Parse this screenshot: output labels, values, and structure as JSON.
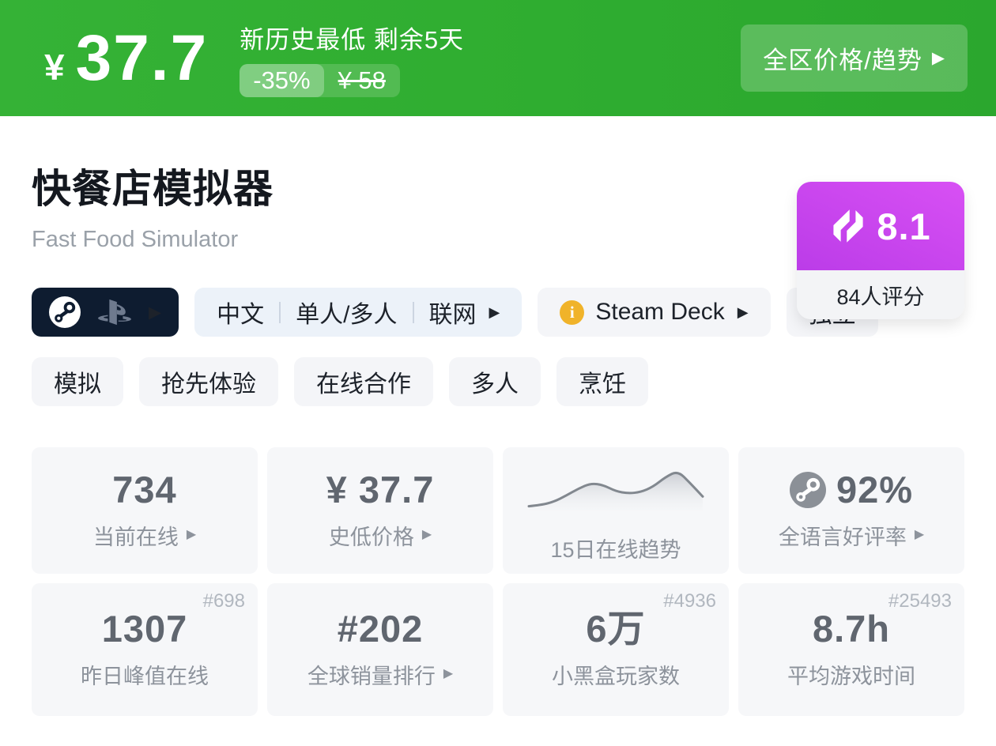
{
  "ui": {
    "arrow": "▶",
    "info_glyph": "i"
  },
  "colors": {
    "banner_green": "#2fad30",
    "rating_purple_top": "#d850f4",
    "rating_purple_bottom": "#bb3ce8",
    "dark_pill_navy": "#0e1c30",
    "info_yellow": "#f0b32a"
  },
  "banner": {
    "currency": "¥",
    "price": "37.7",
    "promo": "新历史最低 剩余5天",
    "discount": "-35%",
    "original_price": "¥ 58",
    "trend_button": "全区价格/趋势"
  },
  "header": {
    "title": "快餐店模拟器",
    "subtitle": "Fast Food Simulator",
    "rating_score": "8.1",
    "rating_count": "84人评分"
  },
  "tags": {
    "multi": [
      "中文",
      "单人/多人",
      "联网"
    ],
    "steam_deck": "Steam Deck",
    "indie": "独立",
    "genres": [
      "模拟",
      "抢先体验",
      "在线合作",
      "多人",
      "烹饪"
    ]
  },
  "stats": {
    "current_online": {
      "value": "734",
      "label": "当前在线"
    },
    "lowest_price": {
      "value": "¥ 37.7",
      "label": "史低价格"
    },
    "online_trend": {
      "label": "15日在线趋势",
      "values": [
        6,
        9,
        16,
        30,
        46,
        58,
        54,
        40,
        35,
        38,
        50,
        72,
        86,
        58,
        28
      ]
    },
    "positive_rate": {
      "value": "92%",
      "label": "全语言好评率"
    },
    "yesterday_peak": {
      "rank": "#698",
      "value": "1307",
      "label": "昨日峰值在线"
    },
    "global_sales": {
      "value": "#202",
      "label": "全球销量排行"
    },
    "heybox_players": {
      "rank": "#4936",
      "value": "6万",
      "label": "小黑盒玩家数"
    },
    "avg_playtime": {
      "rank": "#25493",
      "value": "8.7h",
      "label": "平均游戏时间"
    }
  }
}
